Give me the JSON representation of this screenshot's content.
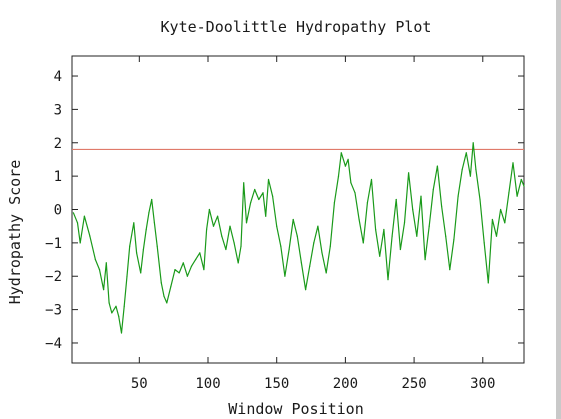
{
  "chart_data": {
    "type": "line",
    "title": "Kyte-Doolittle Hydropathy Plot",
    "xlabel": "Window Position",
    "ylabel": "Hydropathy Score",
    "xlim": [
      1,
      330
    ],
    "ylim": [
      -4.6,
      4.6
    ],
    "xticks": [
      50,
      100,
      150,
      200,
      250,
      300
    ],
    "yticks": [
      4,
      3,
      2,
      1,
      0,
      -1,
      -2,
      -3,
      -4
    ],
    "grid": false,
    "threshold": {
      "value": 1.8,
      "color": "#e07a6a"
    },
    "series": [
      {
        "color": "#1a9a1a",
        "x": [
          2,
          5,
          7,
          10,
          14,
          18,
          21,
          24,
          26,
          28,
          30,
          33,
          35,
          37,
          39,
          41,
          43,
          46,
          48,
          51,
          53,
          55,
          57,
          59,
          61,
          63,
          66,
          68,
          70,
          73,
          76,
          79,
          82,
          85,
          88,
          91,
          94,
          97,
          99,
          101,
          104,
          107,
          110,
          113,
          116,
          119,
          122,
          124,
          126,
          128,
          131,
          134,
          137,
          140,
          142,
          144,
          147,
          150,
          153,
          156,
          159,
          162,
          165,
          168,
          171,
          174,
          177,
          180,
          183,
          186,
          189,
          192,
          195,
          197,
          200,
          202,
          204,
          207,
          210,
          213,
          216,
          219,
          222,
          225,
          228,
          231,
          234,
          237,
          240,
          243,
          246,
          249,
          252,
          255,
          258,
          261,
          264,
          267,
          270,
          273,
          276,
          279,
          282,
          285,
          288,
          291,
          293,
          295,
          298,
          301,
          304,
          307,
          310,
          313,
          316,
          319,
          322,
          325,
          328,
          330
        ],
        "y": [
          -0.1,
          -0.4,
          -1.0,
          -0.2,
          -0.8,
          -1.5,
          -1.8,
          -2.4,
          -1.6,
          -2.8,
          -3.1,
          -2.9,
          -3.2,
          -3.7,
          -2.9,
          -2.0,
          -1.1,
          -0.4,
          -1.3,
          -1.9,
          -1.2,
          -0.6,
          -0.1,
          0.3,
          -0.4,
          -1.1,
          -2.2,
          -2.6,
          -2.8,
          -2.3,
          -1.8,
          -1.9,
          -1.6,
          -2.0,
          -1.7,
          -1.5,
          -1.3,
          -1.8,
          -0.6,
          0.0,
          -0.5,
          -0.2,
          -0.8,
          -1.2,
          -0.5,
          -1.0,
          -1.6,
          -1.1,
          0.8,
          -0.4,
          0.2,
          0.6,
          0.3,
          0.5,
          -0.2,
          0.9,
          0.4,
          -0.5,
          -1.1,
          -2.0,
          -1.2,
          -0.3,
          -0.8,
          -1.6,
          -2.4,
          -1.7,
          -1.0,
          -0.5,
          -1.3,
          -1.9,
          -1.1,
          0.2,
          1.0,
          1.7,
          1.3,
          1.5,
          0.8,
          0.5,
          -0.3,
          -1.0,
          0.2,
          0.9,
          -0.6,
          -1.4,
          -0.6,
          -2.1,
          -0.8,
          0.3,
          -1.2,
          -0.4,
          1.1,
          0.0,
          -0.8,
          0.4,
          -1.5,
          -0.5,
          0.6,
          1.3,
          0.1,
          -0.8,
          -1.8,
          -0.9,
          0.4,
          1.2,
          1.7,
          1.0,
          2.0,
          1.2,
          0.3,
          -1.0,
          -2.2,
          -0.3,
          -0.8,
          0.0,
          -0.4,
          0.5,
          1.4,
          0.4,
          0.9,
          0.7
        ]
      }
    ]
  }
}
